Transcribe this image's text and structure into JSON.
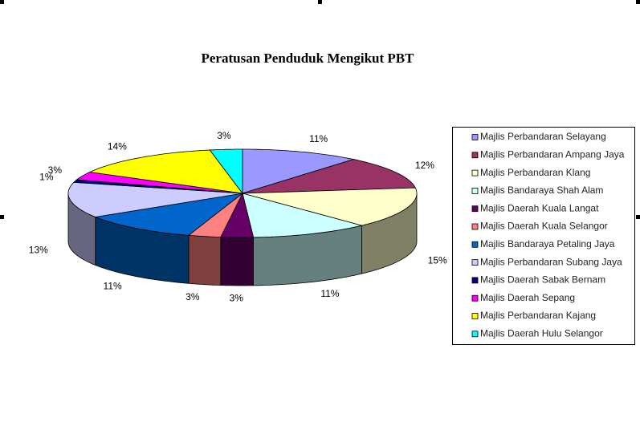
{
  "chart_data": {
    "type": "pie",
    "title": "Peratusan Penduduk Mengikut PBT",
    "categories": [
      "Majlis Perbandaran Selayang",
      "Majlis Perbandaran Ampang Jaya",
      "Majlis Perbandaran Klang",
      "Majlis Bandaraya Shah Alam",
      "Majlis Daerah Kuala Langat",
      "Majlis Daerah Kuala Selangor",
      "Majlis Bandaraya Petaling Jaya",
      "Majlis Perbandaran Subang Jaya",
      "Majlis Daerah Sabak Bernam",
      "Majlis Daerah Sepang",
      "Majlis Perbandaran Kajang",
      "Majlis Daerah Hulu Selangor"
    ],
    "values": [
      11,
      12,
      15,
      11,
      3,
      3,
      11,
      13,
      1,
      3,
      14,
      3
    ],
    "value_labels": [
      "11%",
      "12%",
      "15%",
      "11%",
      "3%",
      "3%",
      "11%",
      "13%",
      "1%",
      "3%",
      "14%",
      "3%"
    ],
    "colors": [
      "#9999ff",
      "#993366",
      "#ffffcc",
      "#ccffff",
      "#660066",
      "#ff8080",
      "#0066cc",
      "#ccccff",
      "#000080",
      "#ff00ff",
      "#ffff00",
      "#00ffff"
    ],
    "legend": "right"
  }
}
